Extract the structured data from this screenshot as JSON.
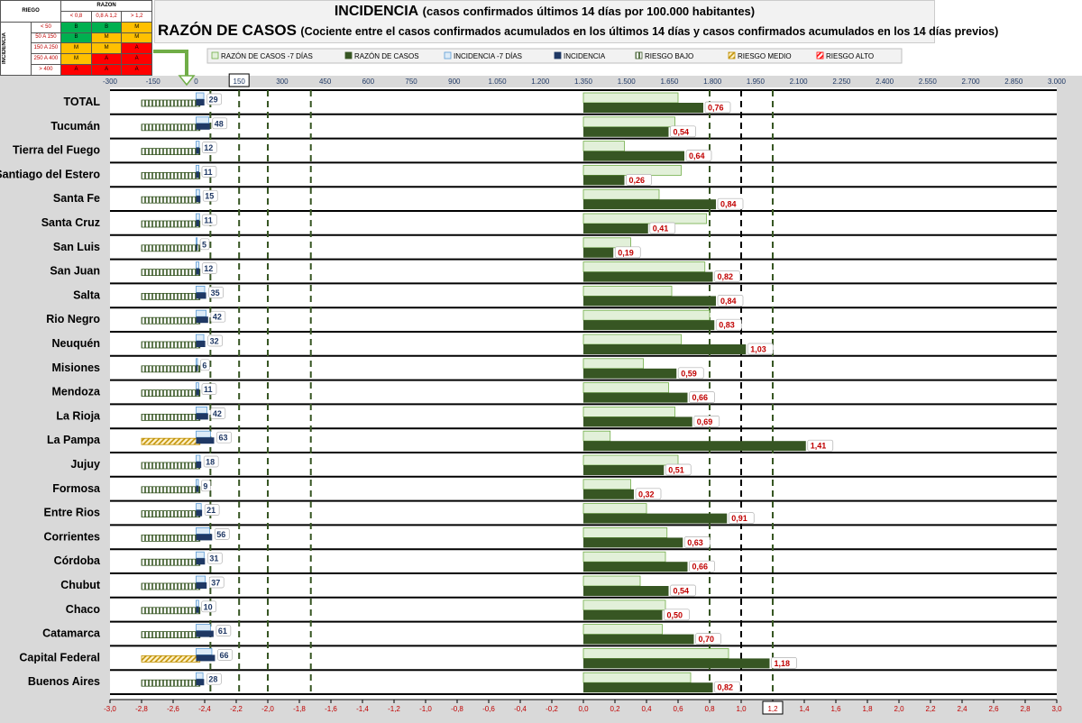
{
  "title": {
    "line1_main": "INCIDENCIA",
    "line1_sub": "(casos confirmados últimos 14 días por 100.000 habitantes)",
    "line2_main": "RAZÓN DE CASOS",
    "line2_sub": "(Cociente entre el casos confirmados acumulados en los últimos 14 días y casos confirmados acumulados en los 14 días previos)"
  },
  "risk_table": {
    "riesgo": "RIEGO",
    "razon": "RAZON",
    "incidencia": "INCIDENCIA",
    "cols": [
      "< 0,8",
      "0,8 A 1,2",
      "> 1,2"
    ],
    "rows": [
      {
        "label": "< 50",
        "cells": [
          "B",
          "B",
          "M"
        ],
        "colors": [
          "g",
          "g",
          "y"
        ]
      },
      {
        "label": "50 A 150",
        "cells": [
          "B",
          "M",
          "M"
        ],
        "colors": [
          "g",
          "y",
          "y"
        ]
      },
      {
        "label": "150 A 250",
        "cells": [
          "M",
          "M",
          "A"
        ],
        "colors": [
          "y",
          "y",
          "r"
        ]
      },
      {
        "label": "250 A 400",
        "cells": [
          "M",
          "A",
          "A"
        ],
        "colors": [
          "y",
          "r",
          "r"
        ]
      },
      {
        "label": "> 400",
        "cells": [
          "A",
          "A",
          "A"
        ],
        "colors": [
          "r",
          "r",
          "r"
        ]
      }
    ]
  },
  "chart_data": {
    "type": "bar",
    "orientation": "horizontal",
    "categories": [
      "TOTAL",
      "Tucumán",
      "Tierra del Fuego",
      "Santiago del Estero",
      "Santa Fe",
      "Santa Cruz",
      "San Luis",
      "San Juan",
      "Salta",
      "Rio Negro",
      "Neuquén",
      "Misiones",
      "Mendoza",
      "La Rioja",
      "La Pampa",
      "Jujuy",
      "Formosa",
      "Entre Rios",
      "Corrientes",
      "Córdoba",
      "Chubut",
      "Chaco",
      "Catamarca",
      "Capital Federal",
      "Buenos Aires"
    ],
    "series": [
      {
        "name": "RAZÓN DE CASOS -7 DÍAS",
        "color": "#e2f0d9",
        "values": [
          0.6,
          0.58,
          0.26,
          0.62,
          0.48,
          0.78,
          0.3,
          0.77,
          0.56,
          0.8,
          0.62,
          0.38,
          0.54,
          0.58,
          0.17,
          0.6,
          0.3,
          0.4,
          0.53,
          0.52,
          0.36,
          0.52,
          0.5,
          0.92,
          0.68
        ]
      },
      {
        "name": "RAZÓN DE CASOS",
        "color": "#375623",
        "values": [
          0.76,
          0.54,
          0.64,
          0.26,
          0.84,
          0.41,
          0.19,
          0.82,
          0.84,
          0.83,
          1.03,
          0.59,
          0.66,
          0.69,
          1.41,
          0.51,
          0.32,
          0.91,
          0.63,
          0.66,
          0.54,
          0.5,
          0.7,
          1.18,
          0.82
        ]
      },
      {
        "name": "INCIDENCIA -7 DÍAS",
        "color": "#ddebf7",
        "values": [
          27,
          44,
          11,
          10,
          12,
          12,
          4,
          10,
          30,
          35,
          27,
          5,
          9,
          38,
          50,
          14,
          8,
          18,
          47,
          28,
          32,
          9,
          50,
          55,
          24
        ]
      },
      {
        "name": "INCIDENCIA",
        "color": "#1f3864",
        "values": [
          29,
          48,
          12,
          11,
          15,
          11,
          5,
          12,
          35,
          42,
          32,
          6,
          11,
          42,
          63,
          18,
          9,
          21,
          56,
          31,
          37,
          10,
          61,
          66,
          28
        ]
      },
      {
        "name": "RIESGO BAJO",
        "color": "#70ad47",
        "values": [
          "B",
          "B",
          "B",
          "B",
          "B",
          "B",
          "B",
          "B",
          "B",
          "B",
          "B",
          "B",
          "B",
          "B",
          "",
          "B",
          "B",
          "B",
          "B",
          "B",
          "B",
          "B",
          "B",
          "",
          "B"
        ]
      },
      {
        "name": "RIESGO MEDIO",
        "color": "#ffc000",
        "values": [
          "",
          "",
          "",
          "",
          "",
          "",
          "",
          "",
          "",
          "",
          "",
          "",
          "",
          "",
          "M",
          "",
          "",
          "",
          "",
          "",
          "",
          "",
          "",
          "M",
          ""
        ]
      },
      {
        "name": "RIESGO ALTO",
        "color": "#ff0000",
        "values": [
          "",
          "",
          "",
          "",
          "",
          "",
          "",
          "",
          "",
          "",
          "",
          "",
          "",
          "",
          "",
          "",
          "",
          "",
          "",
          "",
          "",
          "",
          "",
          "",
          ""
        ]
      }
    ],
    "incidencia_labels": [
      "29",
      "48",
      "12",
      "11",
      "15",
      "11",
      "5",
      "12",
      "35",
      "42",
      "32",
      "6",
      "11",
      "42",
      "63",
      "18",
      "9",
      "21",
      "56",
      "31",
      "37",
      "10",
      "61",
      "66",
      "28"
    ],
    "razon_labels": [
      "0,76",
      "0,54",
      "0,64",
      "0,26",
      "0,84",
      "0,41",
      "0,19",
      "0,82",
      "0,84",
      "0,83",
      "1,03",
      "0,59",
      "0,66",
      "0,69",
      "1,41",
      "0,51",
      "0,32",
      "0,91",
      "0,63",
      "0,66",
      "0,54",
      "0,50",
      "0,70",
      "1,18",
      "0,82"
    ],
    "top_axis": {
      "ticks": [
        "-300",
        "-150",
        "0",
        "150",
        "300",
        "450",
        "600",
        "750",
        "900",
        "1.050",
        "1.200",
        "1.350",
        "1.500",
        "1.650",
        "1.800",
        "1.950",
        "2.100",
        "2.250",
        "2.400",
        "2.550",
        "2.700",
        "2.850",
        "3.000"
      ],
      "boxed": "150",
      "range": [
        -300,
        3000
      ]
    },
    "bottom_axis": {
      "ticks": [
        "-3,0",
        "-2,8",
        "-2,6",
        "-2,4",
        "-2,2",
        "-2,0",
        "-1,8",
        "-1,6",
        "-1,4",
        "-1,2",
        "-1,0",
        "-0,8",
        "-0,6",
        "-0,4",
        "-0,2",
        "0,0",
        "0,2",
        "0,4",
        "0,6",
        "0,8",
        "1,0",
        "1,2",
        "1,4",
        "1,6",
        "1,8",
        "2,0",
        "2,2",
        "2,4",
        "2,6",
        "2,8",
        "3,0"
      ],
      "boxed": "1,2",
      "range": [
        -3.0,
        3.0
      ]
    },
    "reference_lines": {
      "incidence": [
        50,
        150,
        250,
        400
      ],
      "ratio": [
        0.8,
        1.0,
        1.2
      ]
    },
    "grid": false
  }
}
